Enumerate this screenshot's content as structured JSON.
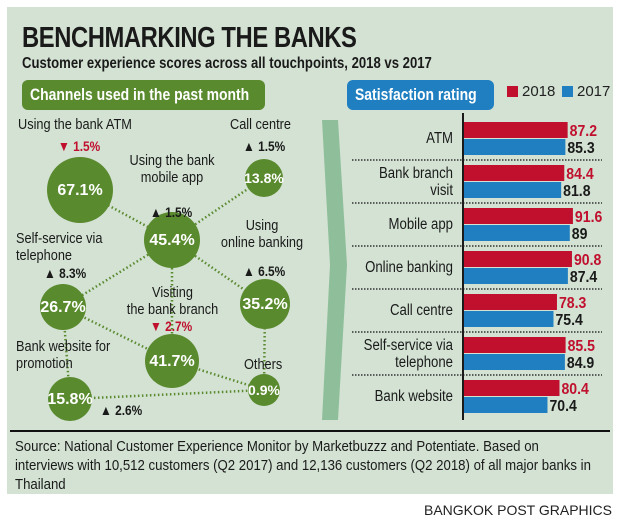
{
  "title": "BENCHMARKING THE BANKS",
  "subtitle": "Customer experience scores across all touchpoints, 2018 vs 2017",
  "colors": {
    "background": "#d3e2d3",
    "green": "#5a8a2e",
    "blue": "#1f7fc0",
    "red": "#c0102e"
  },
  "chart_data": [
    {
      "type": "bubble-network",
      "title": "Channels used in the past month",
      "nodes": [
        {
          "label": "Using the bank ATM",
          "value": "67.1%",
          "change": "1.5%",
          "direction": "down"
        },
        {
          "label": "Using the bank mobile app",
          "value": "45.4%",
          "change": "1.5%",
          "direction": "up"
        },
        {
          "label": "Call centre",
          "value": "13.8%",
          "change": "1.5%",
          "direction": "up"
        },
        {
          "label": "Using online banking",
          "value": "35.2%",
          "change": "6.5%",
          "direction": "up"
        },
        {
          "label": "Self-service via telephone",
          "value": "26.7%",
          "change": "8.3%",
          "direction": "up"
        },
        {
          "label": "Visiting the bank branch",
          "value": "41.7%",
          "change": "2.7%",
          "direction": "down"
        },
        {
          "label": "Bank website for promotion",
          "value": "15.8%",
          "change": "2.6%",
          "direction": "up"
        },
        {
          "label": "Others",
          "value": "0.9%",
          "change": "",
          "direction": ""
        }
      ]
    },
    {
      "type": "bar",
      "title": "Satisfaction rating",
      "categories": [
        "ATM",
        "Bank branch visit",
        "Mobile app",
        "Online banking",
        "Call centre",
        "Self-service via telephone",
        "Bank website"
      ],
      "series": [
        {
          "name": "2018",
          "color": "#c0102e",
          "values": [
            87.2,
            84.4,
            91.6,
            90.8,
            78.3,
            85.5,
            80.4
          ]
        },
        {
          "name": "2017",
          "color": "#1f7fc0",
          "values": [
            85.3,
            81.8,
            89,
            87.4,
            75.4,
            84.9,
            70.4
          ]
        }
      ],
      "legend": "top-right"
    }
  ],
  "source": "Source: National Customer Experience Monitor by Marketbuzzz and Potentiate. Based on interviews with 10,512 customers (Q2 2017) and 12,136 customers (Q2 2018) of all major banks in Thailand",
  "credit": "BANGKOK POST GRAPHICS"
}
